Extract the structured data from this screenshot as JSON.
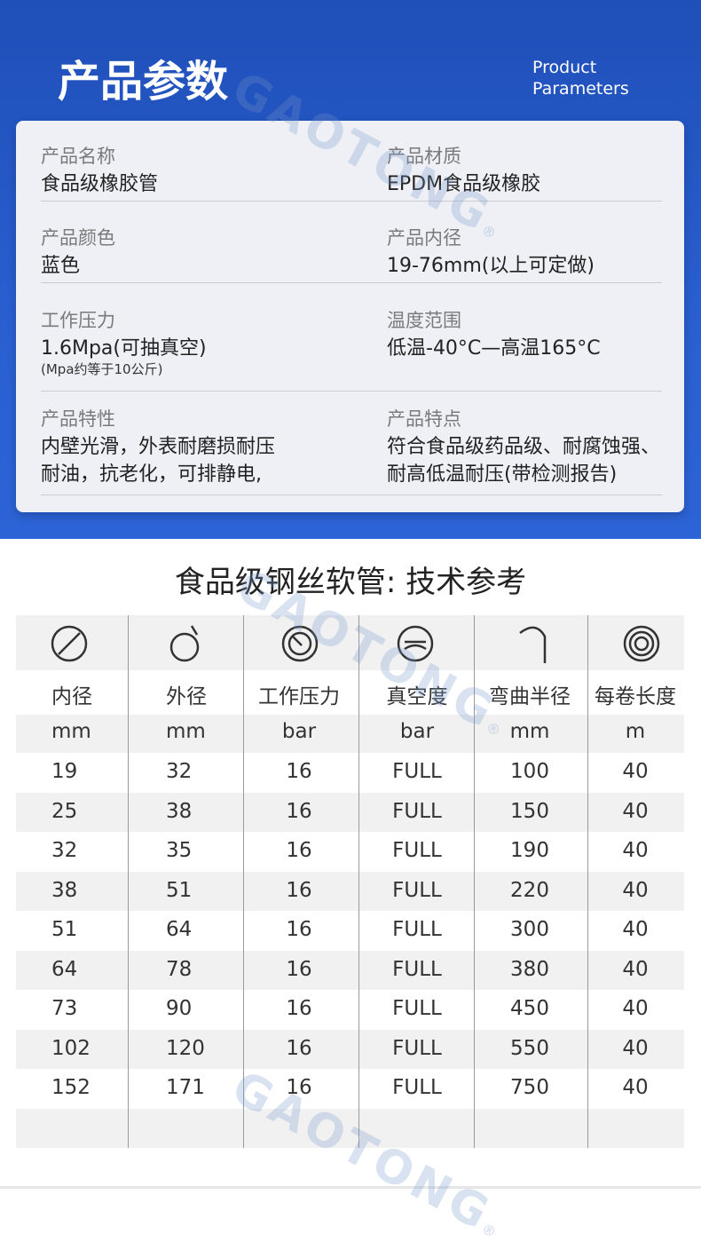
{
  "header": {
    "title": "产品参数",
    "subtitle": [
      "Product",
      "Parameters"
    ]
  },
  "watermark": {
    "text": "GAOTONG",
    "mark": "®"
  },
  "params": [
    {
      "label": "产品名称",
      "value": [
        "食品级橡胶管"
      ]
    },
    {
      "label": "产品材质",
      "value": [
        "EPDM食品级橡胶"
      ]
    },
    {
      "label": "产品颜色",
      "value": [
        "蓝色"
      ]
    },
    {
      "label": "产品内径",
      "value": [
        "19-76mm(以上可定做)"
      ]
    },
    {
      "label": "工作压力",
      "value": [
        "1.6Mpa(可抽真空)"
      ],
      "note": "(Mpa约等于10公斤)"
    },
    {
      "label": "温度范围",
      "value": [
        "低温-40°C—高温165°C"
      ]
    },
    {
      "label": "产品特性",
      "value": [
        "内壁光滑，外表耐磨损耐压",
        "耐油，抗老化，可排静电,"
      ]
    },
    {
      "label": "产品特点",
      "value": [
        "符合食品级药品级、耐腐蚀强、",
        "耐高低温耐压(带检测报告)"
      ]
    }
  ],
  "table": {
    "title": "食品级钢丝软管: 技术参考",
    "headers": [
      "内径",
      "外径",
      "工作压力",
      "真空度",
      "弯曲半径",
      "每卷长度"
    ],
    "units": [
      "mm",
      "mm",
      "bar",
      "bar",
      "mm",
      "m"
    ],
    "rows": [
      [
        19,
        32,
        16,
        "FULL",
        100,
        40
      ],
      [
        25,
        38,
        16,
        "FULL",
        150,
        40
      ],
      [
        32,
        35,
        16,
        "FULL",
        190,
        40
      ],
      [
        38,
        51,
        16,
        "FULL",
        220,
        40
      ],
      [
        51,
        64,
        16,
        "FULL",
        300,
        40
      ],
      [
        64,
        78,
        16,
        "FULL",
        380,
        40
      ],
      [
        73,
        90,
        16,
        "FULL",
        450,
        40
      ],
      [
        102,
        120,
        16,
        "FULL",
        550,
        40
      ],
      [
        152,
        171,
        16,
        "FULL",
        750,
        40
      ]
    ]
  }
}
